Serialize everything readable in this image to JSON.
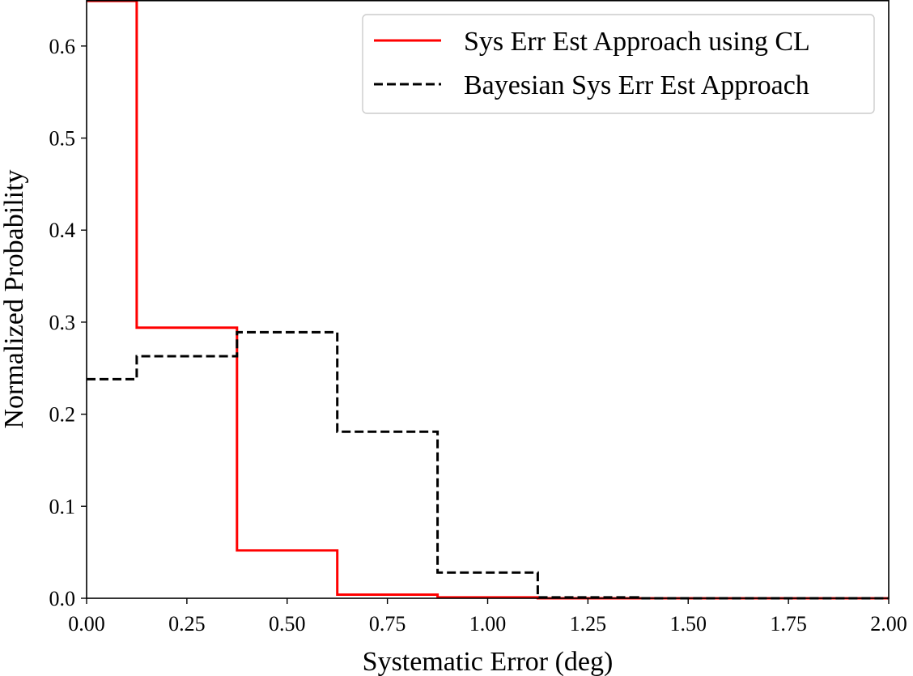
{
  "chart_data": {
    "type": "line",
    "step_style": "post",
    "title": "",
    "xlabel": "Systematic Error (deg)",
    "ylabel": "Normalized Probability",
    "xlim": [
      0,
      2
    ],
    "ylim": [
      0,
      0.65
    ],
    "x_ticks": [
      "0.00",
      "0.25",
      "0.50",
      "0.75",
      "1.00",
      "1.25",
      "1.50",
      "1.75",
      "2.00"
    ],
    "y_ticks": [
      "0.0",
      "0.1",
      "0.2",
      "0.3",
      "0.4",
      "0.5",
      "0.6"
    ],
    "grid": false,
    "legend_position": "top-right",
    "x": [
      0,
      0.125,
      0.375,
      0.625,
      0.875,
      1.125,
      1.375,
      1.625,
      1.875,
      2.0
    ],
    "series": [
      {
        "name": "Sys Err Est Approach using CL",
        "color": "#ff0000",
        "linestyle": "solid",
        "values": [
          0.649,
          0.294,
          0.052,
          0.004,
          0.001,
          0.0,
          0.0,
          0.0,
          0.0,
          0.0
        ]
      },
      {
        "name": "Bayesian Sys Err Est Approach",
        "color": "#000000",
        "linestyle": "dashed",
        "values": [
          0.238,
          0.263,
          0.289,
          0.181,
          0.028,
          0.001,
          0.0,
          0.0,
          0.0,
          0.0
        ]
      }
    ]
  }
}
